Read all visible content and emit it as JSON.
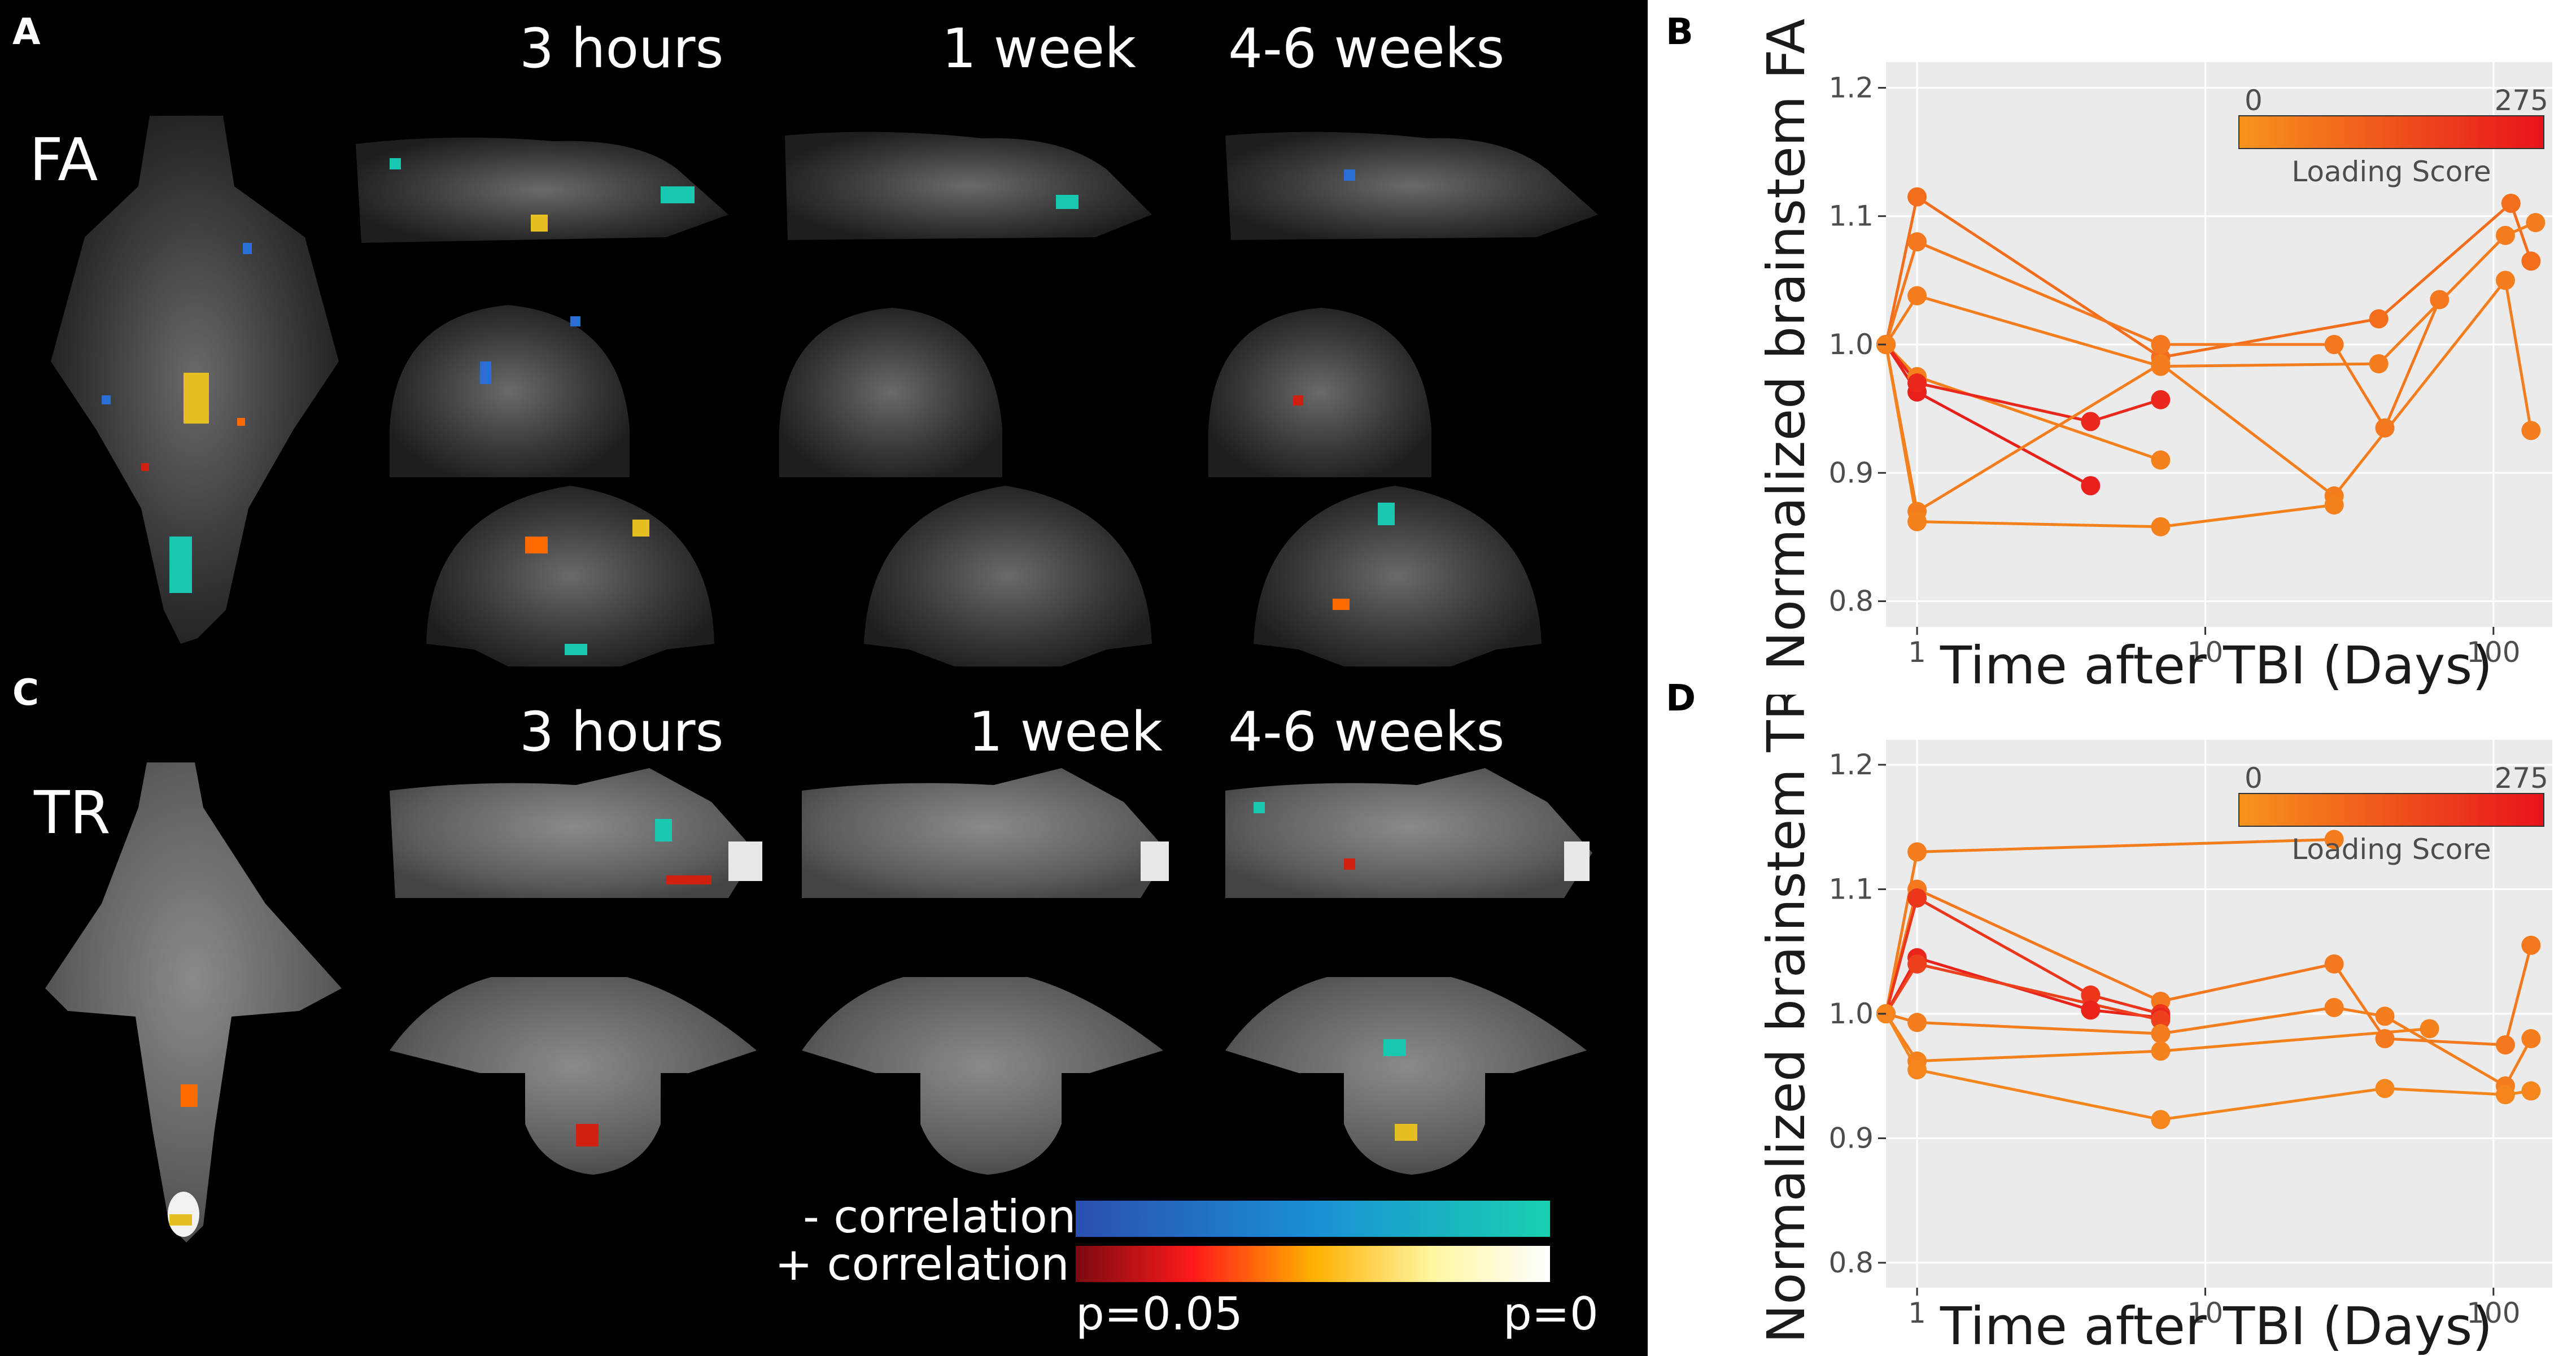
{
  "figure": {
    "panel_labels": {
      "a": "A",
      "b": "B",
      "c": "C",
      "d": "D"
    },
    "row_labels": {
      "fa": "FA",
      "tr": "TR"
    },
    "time_points": [
      "3 hours",
      "1 week",
      "4-6 weeks"
    ],
    "correlation_legend": {
      "negative_label": "- correlation",
      "positive_label": "+ correlation",
      "p_low": "p=0.05",
      "p_high": "p=0",
      "negative_colors": [
        "#2a4fb0",
        "#1a8fd6",
        "#19d0b0"
      ],
      "positive_colors": [
        "#7a0a10",
        "#ff1a1a",
        "#ffb000",
        "#fff6a0",
        "#ffffff"
      ]
    },
    "colors": {
      "line": "#f28c28",
      "point_low": "#f7941d",
      "point_high": "#e8131b",
      "plot_bg": "#ebebeb"
    }
  },
  "chart_data": [
    {
      "type": "line",
      "panel": "B",
      "xlabel": "Time after TBI (Days)",
      "ylabel": "Normalized brainstem FA",
      "xscale": "log",
      "xlim": [
        0.78,
        160
      ],
      "ylim": [
        0.78,
        1.22
      ],
      "x_ticks": [
        1,
        10,
        100
      ],
      "x_tick_labels": [
        "1",
        "10",
        "100"
      ],
      "y_ticks": [
        0.8,
        0.9,
        1.0,
        1.1,
        1.2
      ],
      "y_tick_labels": [
        "0.8",
        "0.9",
        "1.0",
        "1.1",
        "1.2"
      ],
      "legend": {
        "title": "Loading Score",
        "min_label": "0",
        "max_label": "275",
        "placement": "top-right"
      },
      "series": [
        {
          "score": 80,
          "points": [
            [
              0.78,
              1.0
            ],
            [
              1,
              1.115
            ],
            [
              7,
              0.99
            ],
            [
              40,
              1.02
            ],
            [
              115,
              1.11
            ],
            [
              135,
              1.065
            ]
          ]
        },
        {
          "score": 60,
          "points": [
            [
              0.78,
              1.0
            ],
            [
              1,
              1.08
            ],
            [
              7,
              1.0
            ],
            [
              28,
              1.0
            ],
            [
              42,
              0.935
            ],
            [
              65,
              1.035
            ]
          ]
        },
        {
          "score": 50,
          "points": [
            [
              0.78,
              1.0
            ],
            [
              1,
              1.038
            ],
            [
              7,
              0.983
            ],
            [
              40,
              0.985
            ],
            [
              110,
              1.085
            ],
            [
              140,
              1.095
            ]
          ]
        },
        {
          "score": 40,
          "points": [
            [
              0.78,
              1.0
            ],
            [
              1,
              0.975
            ],
            [
              7,
              0.91
            ]
          ]
        },
        {
          "score": 250,
          "points": [
            [
              0.78,
              1.0
            ],
            [
              1,
              0.963
            ],
            [
              4,
              0.89
            ]
          ]
        },
        {
          "score": 230,
          "points": [
            [
              0.78,
              1.0
            ],
            [
              1,
              0.97
            ],
            [
              4,
              0.94
            ],
            [
              7,
              0.957
            ]
          ]
        },
        {
          "score": 50,
          "points": [
            [
              0.78,
              1.0
            ],
            [
              1,
              0.87
            ],
            [
              7,
              0.985
            ],
            [
              28,
              0.882
            ],
            [
              110,
              1.05
            ],
            [
              135,
              0.933
            ]
          ]
        },
        {
          "score": 40,
          "points": [
            [
              0.78,
              1.0
            ],
            [
              1,
              0.862
            ],
            [
              7,
              0.858
            ],
            [
              28,
              0.875
            ]
          ]
        }
      ]
    },
    {
      "type": "line",
      "panel": "D",
      "xlabel": "Time after TBI (Days)",
      "ylabel": "Normalized brainstem TR",
      "xscale": "log",
      "xlim": [
        0.78,
        160
      ],
      "ylim": [
        0.78,
        1.22
      ],
      "x_ticks": [
        1,
        10,
        100
      ],
      "x_tick_labels": [
        "1",
        "10",
        "100"
      ],
      "y_ticks": [
        0.8,
        0.9,
        1.0,
        1.1,
        1.2
      ],
      "y_tick_labels": [
        "0.8",
        "0.9",
        "1.0",
        "1.1",
        "1.2"
      ],
      "legend": {
        "title": "Loading Score",
        "min_label": "0",
        "max_label": "275",
        "placement": "top-right"
      },
      "series": [
        {
          "score": 50,
          "points": [
            [
              0.78,
              1.0
            ],
            [
              1,
              1.13
            ],
            [
              28,
              1.14
            ]
          ]
        },
        {
          "score": 60,
          "points": [
            [
              0.78,
              1.0
            ],
            [
              1,
              1.1
            ],
            [
              7,
              1.01
            ],
            [
              28,
              1.04
            ],
            [
              42,
              0.98
            ],
            [
              110,
              0.975
            ],
            [
              135,
              1.055
            ]
          ]
        },
        {
          "score": 200,
          "points": [
            [
              0.78,
              1.0
            ],
            [
              1,
              1.093
            ],
            [
              4,
              1.015
            ],
            [
              7,
              1.0
            ]
          ]
        },
        {
          "score": 240,
          "points": [
            [
              0.78,
              1.0
            ],
            [
              1,
              1.045
            ],
            [
              4,
              1.003
            ],
            [
              7,
              0.997
            ]
          ]
        },
        {
          "score": 180,
          "points": [
            [
              0.78,
              1.0
            ],
            [
              1,
              1.04
            ],
            [
              7,
              0.995
            ]
          ]
        },
        {
          "score": 50,
          "points": [
            [
              0.78,
              1.0
            ],
            [
              1,
              0.993
            ],
            [
              7,
              0.984
            ],
            [
              28,
              1.005
            ],
            [
              42,
              0.998
            ],
            [
              110,
              0.942
            ],
            [
              135,
              0.98
            ]
          ]
        },
        {
          "score": 40,
          "points": [
            [
              0.78,
              1.0
            ],
            [
              1,
              0.962
            ],
            [
              7,
              0.97
            ],
            [
              60,
              0.988
            ]
          ]
        },
        {
          "score": 30,
          "points": [
            [
              0.78,
              1.0
            ],
            [
              1,
              0.955
            ],
            [
              7,
              0.915
            ],
            [
              42,
              0.94
            ],
            [
              110,
              0.935
            ],
            [
              135,
              0.938
            ]
          ]
        }
      ]
    }
  ]
}
